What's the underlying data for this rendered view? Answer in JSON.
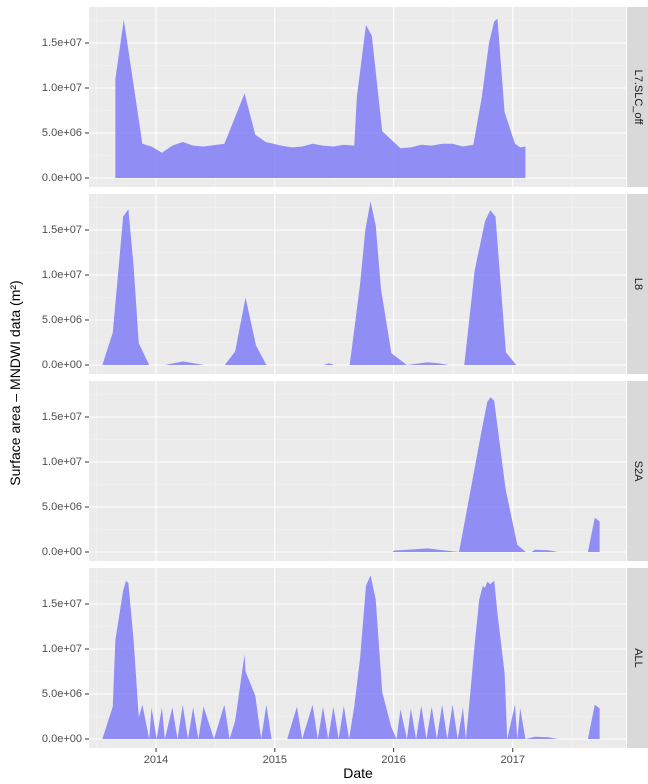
{
  "chart_data": {
    "type": "area",
    "xlabel": "Date",
    "ylabel": "Surface area – MNDWI data (m²)",
    "x_ticks": [
      "2014",
      "2015",
      "2016",
      "2017"
    ],
    "y_ticks": [
      "0.0e+00",
      "5.0e+06",
      "1.0e+07",
      "1.5e+07"
    ],
    "y_tick_values": [
      0,
      5000000,
      10000000,
      15000000
    ],
    "xlim": [
      "2013-06-09",
      "2017-12-15"
    ],
    "ylim": [
      -1000000,
      19000000
    ],
    "grid": true,
    "fill_color": "#7b79f7",
    "panels": [
      {
        "name": "L7.SLC_off",
        "points": [
          [
            "2013-08-29",
            0
          ],
          [
            "2013-08-29",
            11000000
          ],
          [
            "2013-09-24",
            17600000
          ],
          [
            "2013-11-20",
            3800000
          ],
          [
            "2013-12-18",
            3500000
          ],
          [
            "2014-01-19",
            2800000
          ],
          [
            "2014-02-20",
            3600000
          ],
          [
            "2014-03-24",
            4000000
          ],
          [
            "2014-04-25",
            3600000
          ],
          [
            "2014-05-27",
            3500000
          ],
          [
            "2014-07-30",
            3800000
          ],
          [
            "2014-09-30",
            9400000
          ],
          [
            "2014-11-02",
            4800000
          ],
          [
            "2014-12-04",
            4000000
          ],
          [
            "2015-01-21",
            3600000
          ],
          [
            "2015-02-22",
            3400000
          ],
          [
            "2015-03-26",
            3500000
          ],
          [
            "2015-04-27",
            3800000
          ],
          [
            "2015-05-29",
            3600000
          ],
          [
            "2015-06-30",
            3500000
          ],
          [
            "2015-08-01",
            3700000
          ],
          [
            "2015-09-02",
            3600000
          ],
          [
            "2015-09-10",
            9000000
          ],
          [
            "2015-10-08",
            17000000
          ],
          [
            "2015-10-26",
            15800000
          ],
          [
            "2015-11-27",
            5200000
          ],
          [
            "2016-01-22",
            3300000
          ],
          [
            "2016-02-23",
            3400000
          ],
          [
            "2016-03-26",
            3700000
          ],
          [
            "2016-04-27",
            3600000
          ],
          [
            "2016-05-29",
            3800000
          ],
          [
            "2016-06-30",
            3800000
          ],
          [
            "2016-08-01",
            3500000
          ],
          [
            "2016-09-02",
            3700000
          ],
          [
            "2016-09-28",
            9000000
          ],
          [
            "2016-10-20",
            15000000
          ],
          [
            "2016-11-05",
            17400000
          ],
          [
            "2016-11-15",
            17700000
          ],
          [
            "2016-12-07",
            7300000
          ],
          [
            "2017-01-08",
            3800000
          ],
          [
            "2017-01-24",
            3400000
          ],
          [
            "2017-02-09",
            3500000
          ],
          [
            "2017-02-09",
            0
          ]
        ]
      },
      {
        "name": "L8",
        "points": [
          [
            "2013-07-20",
            0
          ],
          [
            "2013-08-21",
            3600000
          ],
          [
            "2013-09-22",
            16500000
          ],
          [
            "2013-10-08",
            17300000
          ],
          [
            "2013-10-24",
            11000000
          ],
          [
            "2013-11-09",
            2400000
          ],
          [
            "2013-12-11",
            0
          ],
          [
            "2014-01-28",
            0
          ],
          [
            "2014-03-25",
            400000
          ],
          [
            "2014-05-28",
            0
          ],
          [
            "2014-07-31",
            0
          ],
          [
            "2014-09-01",
            1500000
          ],
          [
            "2014-10-03",
            7500000
          ],
          [
            "2014-11-04",
            2200000
          ],
          [
            "2014-12-06",
            0
          ],
          [
            "2015-01-23",
            0
          ],
          [
            "2015-05-31",
            0
          ],
          [
            "2015-06-16",
            200000
          ],
          [
            "2015-07-02",
            0
          ],
          [
            "2015-08-19",
            0
          ],
          [
            "2015-09-20",
            9000000
          ],
          [
            "2015-10-06",
            15000000
          ],
          [
            "2015-10-22",
            18200000
          ],
          [
            "2015-11-07",
            15500000
          ],
          [
            "2015-11-23",
            8500000
          ],
          [
            "2015-12-25",
            1300000
          ],
          [
            "2016-02-11",
            0
          ],
          [
            "2016-04-15",
            300000
          ],
          [
            "2016-05-17",
            200000
          ],
          [
            "2016-06-18",
            0
          ],
          [
            "2016-08-05",
            0
          ],
          [
            "2016-09-06",
            10500000
          ],
          [
            "2016-10-08",
            16000000
          ],
          [
            "2016-10-24",
            17200000
          ],
          [
            "2016-11-09",
            16500000
          ],
          [
            "2016-12-11",
            1400000
          ],
          [
            "2017-01-12",
            0
          ]
        ]
      },
      {
        "name": "S2A",
        "points": [
          [
            "2015-12-29",
            0
          ],
          [
            "2016-01-01",
            150000
          ],
          [
            "2016-04-15",
            400000
          ],
          [
            "2016-06-01",
            200000
          ],
          [
            "2016-07-20",
            0
          ],
          [
            "2016-08-25",
            7000000
          ],
          [
            "2016-09-30",
            14000000
          ],
          [
            "2016-10-15",
            16700000
          ],
          [
            "2016-10-25",
            17200000
          ],
          [
            "2016-11-05",
            16800000
          ],
          [
            "2016-11-15",
            14000000
          ],
          [
            "2016-12-10",
            7000000
          ],
          [
            "2017-01-15",
            800000
          ],
          [
            "2017-02-10",
            0
          ],
          [
            "2017-02-28",
            0
          ],
          [
            "2017-03-10",
            250000
          ],
          [
            "2017-04-20",
            200000
          ],
          [
            "2017-05-20",
            0
          ],
          [
            "2017-08-20",
            0
          ],
          [
            "2017-09-10",
            3800000
          ],
          [
            "2017-09-25",
            3400000
          ],
          [
            "2017-09-25",
            0
          ]
        ]
      },
      {
        "name": "ALL",
        "points": [
          [
            "2013-07-20",
            0
          ],
          [
            "2013-08-21",
            3600000
          ],
          [
            "2013-08-29",
            11000000
          ],
          [
            "2013-09-22",
            16500000
          ],
          [
            "2013-10-01",
            17600000
          ],
          [
            "2013-10-08",
            17300000
          ],
          [
            "2013-10-24",
            11000000
          ],
          [
            "2013-11-09",
            2400000
          ],
          [
            "2013-11-20",
            3800000
          ],
          [
            "2013-12-11",
            0
          ],
          [
            "2013-12-18",
            3500000
          ],
          [
            "2014-01-03",
            0
          ],
          [
            "2014-01-19",
            3500000
          ],
          [
            "2014-01-28",
            0
          ],
          [
            "2014-02-20",
            3500000
          ],
          [
            "2014-03-08",
            0
          ],
          [
            "2014-03-24",
            3800000
          ],
          [
            "2014-04-09",
            0
          ],
          [
            "2014-04-25",
            3500000
          ],
          [
            "2014-05-11",
            0
          ],
          [
            "2014-05-27",
            3600000
          ],
          [
            "2014-06-28",
            0
          ],
          [
            "2014-07-30",
            3800000
          ],
          [
            "2014-08-15",
            0
          ],
          [
            "2014-09-01",
            2000000
          ],
          [
            "2014-09-30",
            9400000
          ],
          [
            "2014-10-03",
            7500000
          ],
          [
            "2014-11-02",
            4800000
          ],
          [
            "2014-11-20",
            0
          ],
          [
            "2014-12-06",
            3800000
          ],
          [
            "2014-12-22",
            0
          ],
          [
            "2015-02-08",
            0
          ],
          [
            "2015-03-10",
            3600000
          ],
          [
            "2015-03-26",
            0
          ],
          [
            "2015-04-27",
            3800000
          ],
          [
            "2015-05-13",
            0
          ],
          [
            "2015-05-29",
            3600000
          ],
          [
            "2015-06-14",
            0
          ],
          [
            "2015-06-30",
            3600000
          ],
          [
            "2015-07-16",
            0
          ],
          [
            "2015-08-01",
            3700000
          ],
          [
            "2015-08-17",
            0
          ],
          [
            "2015-09-02",
            3600000
          ],
          [
            "2015-09-20",
            9000000
          ],
          [
            "2015-10-08",
            17000000
          ],
          [
            "2015-10-22",
            18200000
          ],
          [
            "2015-11-07",
            15500000
          ],
          [
            "2015-11-27",
            5200000
          ],
          [
            "2015-12-25",
            1300000
          ],
          [
            "2016-01-10",
            0
          ],
          [
            "2016-01-22",
            3300000
          ],
          [
            "2016-02-11",
            0
          ],
          [
            "2016-02-23",
            3400000
          ],
          [
            "2016-03-10",
            0
          ],
          [
            "2016-03-26",
            3700000
          ],
          [
            "2016-04-11",
            0
          ],
          [
            "2016-04-27",
            3600000
          ],
          [
            "2016-05-13",
            0
          ],
          [
            "2016-05-29",
            3800000
          ],
          [
            "2016-06-14",
            0
          ],
          [
            "2016-06-30",
            3800000
          ],
          [
            "2016-07-16",
            0
          ],
          [
            "2016-08-01",
            3500000
          ],
          [
            "2016-08-10",
            0
          ],
          [
            "2016-08-20",
            3700000
          ],
          [
            "2016-09-06",
            10500000
          ],
          [
            "2016-09-20",
            15500000
          ],
          [
            "2016-10-01",
            17000000
          ],
          [
            "2016-10-08",
            16800000
          ],
          [
            "2016-10-15",
            17500000
          ],
          [
            "2016-10-24",
            17200000
          ],
          [
            "2016-11-05",
            17600000
          ],
          [
            "2016-11-15",
            14000000
          ],
          [
            "2016-12-07",
            7300000
          ],
          [
            "2016-12-15",
            0
          ],
          [
            "2017-01-08",
            3800000
          ],
          [
            "2017-01-15",
            0
          ],
          [
            "2017-01-24",
            3400000
          ],
          [
            "2017-02-09",
            0
          ],
          [
            "2017-03-10",
            250000
          ],
          [
            "2017-04-20",
            200000
          ],
          [
            "2017-05-20",
            0
          ],
          [
            "2017-08-20",
            0
          ],
          [
            "2017-09-10",
            3800000
          ],
          [
            "2017-09-25",
            3400000
          ],
          [
            "2017-09-25",
            0
          ]
        ]
      }
    ]
  }
}
